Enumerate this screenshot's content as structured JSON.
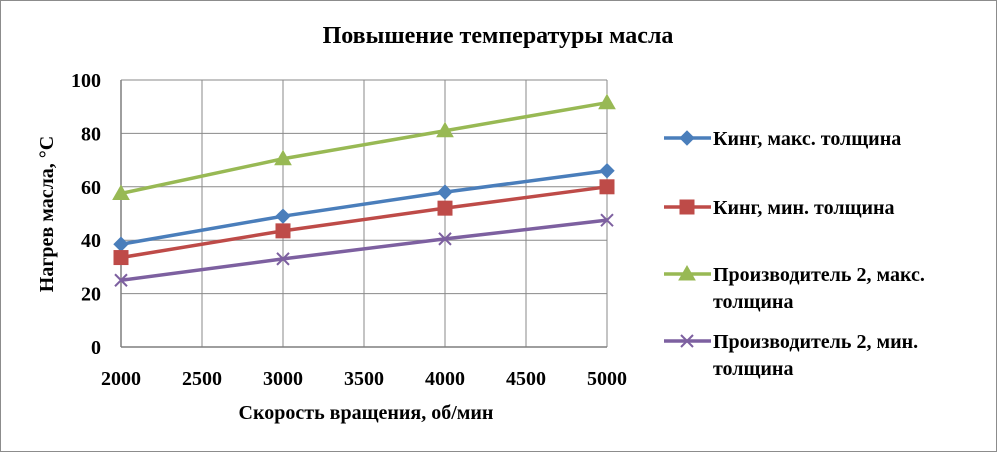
{
  "chart_data": {
    "type": "line",
    "title": "Повышение температуры масла",
    "xlabel": "Скорость вращения, об/мин",
    "ylabel": "Нагрев масла, °С",
    "xlim": [
      2000,
      5000
    ],
    "ylim": [
      0,
      100
    ],
    "x_ticks": [
      "2000",
      "2500",
      "3000",
      "3500",
      "4000",
      "4500",
      "5000"
    ],
    "y_ticks": [
      "0",
      "20",
      "40",
      "60",
      "80",
      "100"
    ],
    "grid": true,
    "legend_position": "right",
    "x": [
      2000,
      3000,
      4000,
      5000
    ],
    "series": [
      {
        "name": "Кинг, макс. толщина",
        "legend_lines": [
          "Кинг, макс. толщина"
        ],
        "values": [
          38.5,
          49,
          58,
          66
        ],
        "color": "#4a7ebb",
        "marker": "diamond"
      },
      {
        "name": "Кинг, мин. толщина",
        "legend_lines": [
          "Кинг, мин. толщина"
        ],
        "values": [
          33.5,
          43.5,
          52,
          60
        ],
        "color": "#be4b48",
        "marker": "square"
      },
      {
        "name": "Производитель 2, макс. толщина",
        "legend_lines": [
          "Производитель 2, макс.",
          "толщина"
        ],
        "values": [
          57.5,
          70.5,
          81,
          91.5
        ],
        "color": "#98b954",
        "marker": "triangle"
      },
      {
        "name": "Производитель 2, мин. толщина",
        "legend_lines": [
          "Производитель 2, мин.",
          "толщина"
        ],
        "values": [
          25,
          33,
          40.5,
          47.5
        ],
        "color": "#7d60a0",
        "marker": "x"
      }
    ]
  }
}
